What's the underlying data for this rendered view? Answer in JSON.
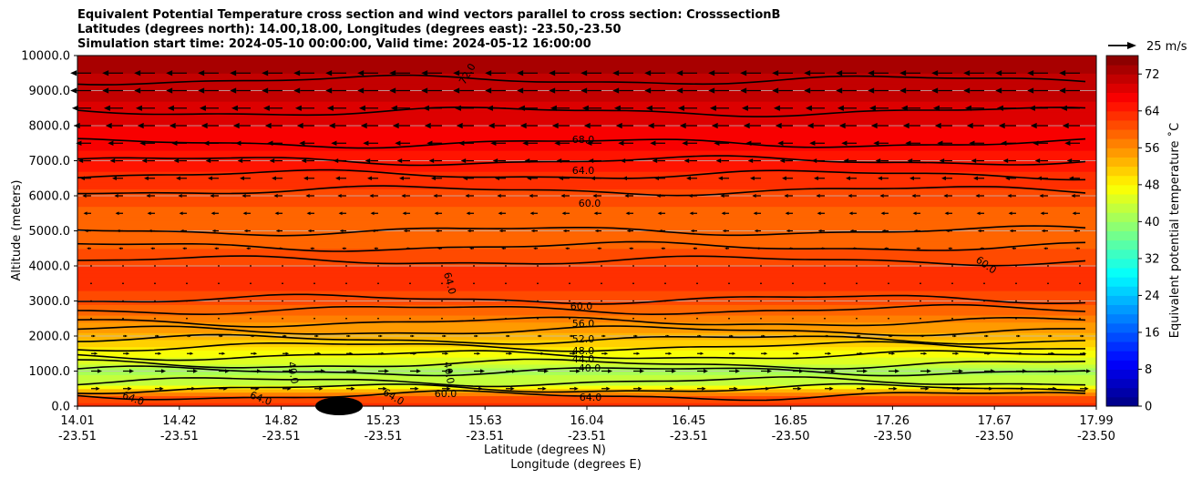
{
  "chart_data": {
    "type": "heatmap",
    "title": [
      "Equivalent Potential Temperature cross section and wind vectors parallel to cross section: CrosssectionB",
      "Latitudes (degrees north): 14.00,18.00, Longitudes (degrees east): -23.50,-23.50",
      "Simulation start time: 2024-05-10 00:00:00, Valid time: 2024-05-12 16:00:00"
    ],
    "ylabel": "Altitude (meters)",
    "xlabel_lat": "Latitude (degrees N)",
    "xlabel_lon": "Longitude (degrees E)",
    "ylim": [
      0,
      10000
    ],
    "yticks": [
      "0.0",
      "1000.0",
      "2000.0",
      "3000.0",
      "4000.0",
      "5000.0",
      "6000.0",
      "7000.0",
      "8000.0",
      "9000.0",
      "10000.0"
    ],
    "xticks_lat": [
      "14.01",
      "14.42",
      "14.82",
      "15.23",
      "15.63",
      "16.04",
      "16.45",
      "16.85",
      "17.26",
      "17.67",
      "17.99"
    ],
    "xticks_lon": [
      "-23.51",
      "-23.51",
      "-23.51",
      "-23.51",
      "-23.51",
      "-23.51",
      "-23.51",
      "-23.50",
      "-23.50",
      "-23.50",
      "-23.50"
    ],
    "colorbar": {
      "label": "Equivalent potential temperature ˚C",
      "range": [
        0,
        76
      ],
      "ticks": [
        "0",
        "8",
        "16",
        "24",
        "32",
        "40",
        "48",
        "56",
        "64",
        "72"
      ],
      "colormap": "jet"
    },
    "wind_key": "25 m/s",
    "contour_labels": [
      "72.0",
      "68.0",
      "64.0",
      "60.0",
      "64.0",
      "60.0",
      "60.0",
      "56.0",
      "52.0",
      "48.0",
      "44.0",
      "40.0",
      "60.0",
      "64.0",
      "64.0",
      "64.0",
      "40.0",
      "40.0",
      "64.0"
    ],
    "theta_e_profile": [
      {
        "z": 0,
        "t": 63
      },
      {
        "z": 300,
        "t": 60
      },
      {
        "z": 600,
        "t": 44
      },
      {
        "z": 1000,
        "t": 41
      },
      {
        "z": 1500,
        "t": 47
      },
      {
        "z": 2000,
        "t": 53
      },
      {
        "z": 2500,
        "t": 57
      },
      {
        "z": 3000,
        "t": 61
      },
      {
        "z": 3700,
        "t": 63
      },
      {
        "z": 4300,
        "t": 61
      },
      {
        "z": 5000,
        "t": 58
      },
      {
        "z": 6000,
        "t": 61
      },
      {
        "z": 7000,
        "t": 65
      },
      {
        "z": 8000,
        "t": 68
      },
      {
        "z": 9000,
        "t": 71
      },
      {
        "z": 10000,
        "t": 73
      }
    ],
    "wind_profile": [
      {
        "z": 500,
        "u": 3
      },
      {
        "z": 1000,
        "u": 4
      },
      {
        "z": 1500,
        "u": 2
      },
      {
        "z": 2000,
        "u": 1
      },
      {
        "z": 3000,
        "u": 0
      },
      {
        "z": 4000,
        "u": 0
      },
      {
        "z": 5000,
        "u": -2
      },
      {
        "z": 6000,
        "u": -3
      },
      {
        "z": 7000,
        "u": -5
      },
      {
        "z": 8000,
        "u": -7
      },
      {
        "z": 9000,
        "u": -9
      },
      {
        "z": 10000,
        "u": -9
      }
    ]
  }
}
